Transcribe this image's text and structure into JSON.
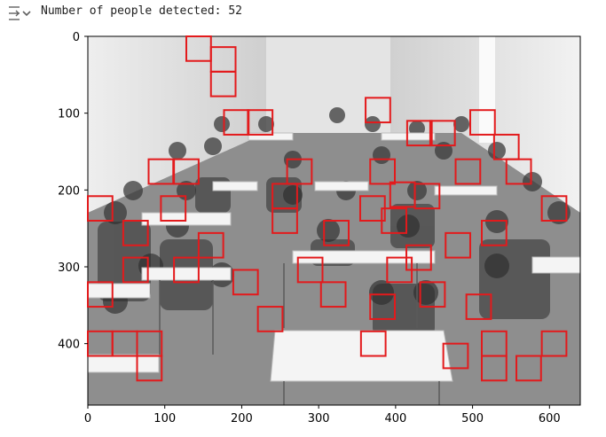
{
  "output": {
    "icon": "output-collapse-icon",
    "text": "Number of people detected: 52"
  },
  "chart_data": {
    "type": "image-with-detections",
    "xlim": [
      0,
      640
    ],
    "ylim": [
      480,
      0
    ],
    "x_ticks": [
      0,
      100,
      200,
      300,
      400,
      500,
      600
    ],
    "y_ticks": [
      0,
      100,
      200,
      300,
      400
    ],
    "box_color": "#e31a1c",
    "box_width": 32,
    "box_height": 32,
    "detections": [
      [
        128,
        0
      ],
      [
        160,
        14
      ],
      [
        160,
        46
      ],
      [
        177,
        96
      ],
      [
        208,
        96
      ],
      [
        361,
        80
      ],
      [
        415,
        110
      ],
      [
        445,
        110
      ],
      [
        497,
        96
      ],
      [
        528,
        128
      ],
      [
        544,
        160
      ],
      [
        79,
        160
      ],
      [
        112,
        160
      ],
      [
        259,
        160
      ],
      [
        367,
        160
      ],
      [
        478,
        160
      ],
      [
        393,
        190
      ],
      [
        240,
        192
      ],
      [
        425,
        192
      ],
      [
        0,
        208
      ],
      [
        95,
        208
      ],
      [
        354,
        208
      ],
      [
        240,
        224
      ],
      [
        382,
        224
      ],
      [
        590,
        208
      ],
      [
        46,
        240
      ],
      [
        307,
        240
      ],
      [
        512,
        240
      ],
      [
        144,
        256
      ],
      [
        465,
        256
      ],
      [
        46,
        288
      ],
      [
        112,
        288
      ],
      [
        273,
        288
      ],
      [
        389,
        288
      ],
      [
        414,
        272
      ],
      [
        189,
        304
      ],
      [
        0,
        320
      ],
      [
        303,
        320
      ],
      [
        432,
        320
      ],
      [
        221,
        352
      ],
      [
        367,
        336
      ],
      [
        492,
        336
      ],
      [
        0,
        384
      ],
      [
        32,
        384
      ],
      [
        64,
        384
      ],
      [
        355,
        384
      ],
      [
        512,
        384
      ],
      [
        64,
        416
      ],
      [
        462,
        400
      ],
      [
        512,
        416
      ],
      [
        557,
        416
      ],
      [
        590,
        384
      ]
    ]
  }
}
